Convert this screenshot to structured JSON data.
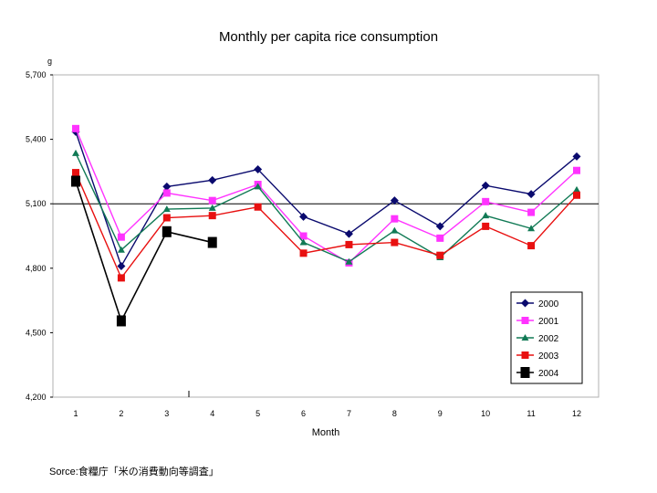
{
  "chart_data": {
    "type": "line",
    "title": "Monthly per capita rice consumption",
    "ylabel": "g",
    "xlabel": "Month",
    "categories": [
      "1",
      "2",
      "3",
      "4",
      "5",
      "6",
      "7",
      "8",
      "9",
      "10",
      "11",
      "12"
    ],
    "ylim": [
      4200,
      5700
    ],
    "yticks": [
      4200,
      4500,
      4800,
      5100,
      5400,
      5700
    ],
    "ytick_labels": [
      "4,200",
      "4,500",
      "4,800",
      "5,100",
      "5,400",
      "5,700"
    ],
    "reference_line": 5100,
    "legend_position": "right",
    "series": [
      {
        "name": "2000",
        "color": "#0a0a6e",
        "marker": "diamond",
        "values": [
          5435,
          4810,
          5180,
          5210,
          5260,
          5040,
          4960,
          5115,
          4995,
          5185,
          5145,
          5320
        ]
      },
      {
        "name": "2001",
        "color": "#ff33ff",
        "marker": "square",
        "values": [
          5450,
          4945,
          5150,
          5115,
          5190,
          4950,
          4825,
          5030,
          4940,
          5110,
          5060,
          5255
        ]
      },
      {
        "name": "2002",
        "color": "#117a55",
        "marker": "triangle",
        "values": [
          5335,
          4885,
          5075,
          5080,
          5180,
          4920,
          4830,
          4975,
          4850,
          5045,
          4985,
          5165
        ]
      },
      {
        "name": "2003",
        "color": "#e81010",
        "marker": "square",
        "values": [
          5245,
          4755,
          5035,
          5045,
          5085,
          4870,
          4910,
          4920,
          4860,
          4995,
          4905,
          5140
        ]
      },
      {
        "name": "2004",
        "color": "#000000",
        "marker": "bigsquare",
        "values": [
          5205,
          4555,
          4970,
          4920,
          null,
          null,
          null,
          null,
          null,
          null,
          null,
          null
        ]
      }
    ]
  },
  "source": "Sorce:食糧庁「米の消費動向等調査」"
}
